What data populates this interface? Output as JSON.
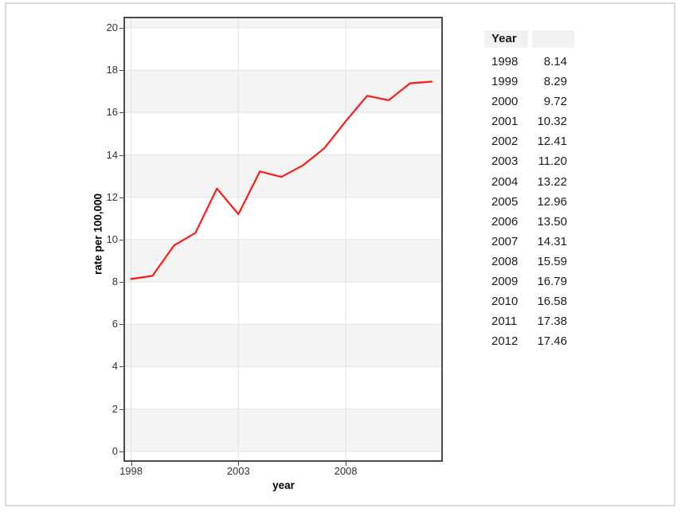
{
  "chart_data": {
    "type": "line",
    "title": "",
    "xlabel": "year",
    "ylabel": "rate per 100,000",
    "x": [
      1998,
      1999,
      2000,
      2001,
      2002,
      2003,
      2004,
      2005,
      2006,
      2007,
      2008,
      2009,
      2010,
      2011,
      2012
    ],
    "series": [
      {
        "name": "rate per 100,000",
        "values": [
          8.14,
          8.29,
          9.72,
          10.32,
          12.41,
          11.2,
          13.22,
          12.96,
          13.5,
          14.31,
          15.59,
          16.79,
          16.58,
          17.38,
          17.46
        ]
      }
    ],
    "xlim": [
      1997.72,
      2012.45
    ],
    "ylim": [
      -0.42,
      20.45
    ],
    "x_ticks": [
      1998,
      2003,
      2008
    ],
    "y_ticks": [
      0,
      2,
      4,
      6,
      8,
      10,
      12,
      14,
      16,
      18,
      20
    ],
    "grid": true,
    "band_interval": 2,
    "legend": "none",
    "colors": {
      "line": "#fa1b12",
      "band": "#f4f4f4",
      "gridline": "#e4e4e4",
      "plot_border": "#4a4a4a",
      "tick_text": "#333333"
    }
  },
  "table": {
    "header": [
      "Year",
      ""
    ],
    "rows": [
      [
        "1998",
        "8.14"
      ],
      [
        "1999",
        "8.29"
      ],
      [
        "2000",
        "9.72"
      ],
      [
        "2001",
        "10.32"
      ],
      [
        "2002",
        "12.41"
      ],
      [
        "2003",
        "11.20"
      ],
      [
        "2004",
        "13.22"
      ],
      [
        "2005",
        "12.96"
      ],
      [
        "2006",
        "13.50"
      ],
      [
        "2007",
        "14.31"
      ],
      [
        "2008",
        "15.59"
      ],
      [
        "2009",
        "16.79"
      ],
      [
        "2010",
        "16.58"
      ],
      [
        "2011",
        "17.38"
      ],
      [
        "2012",
        "17.46"
      ]
    ]
  }
}
